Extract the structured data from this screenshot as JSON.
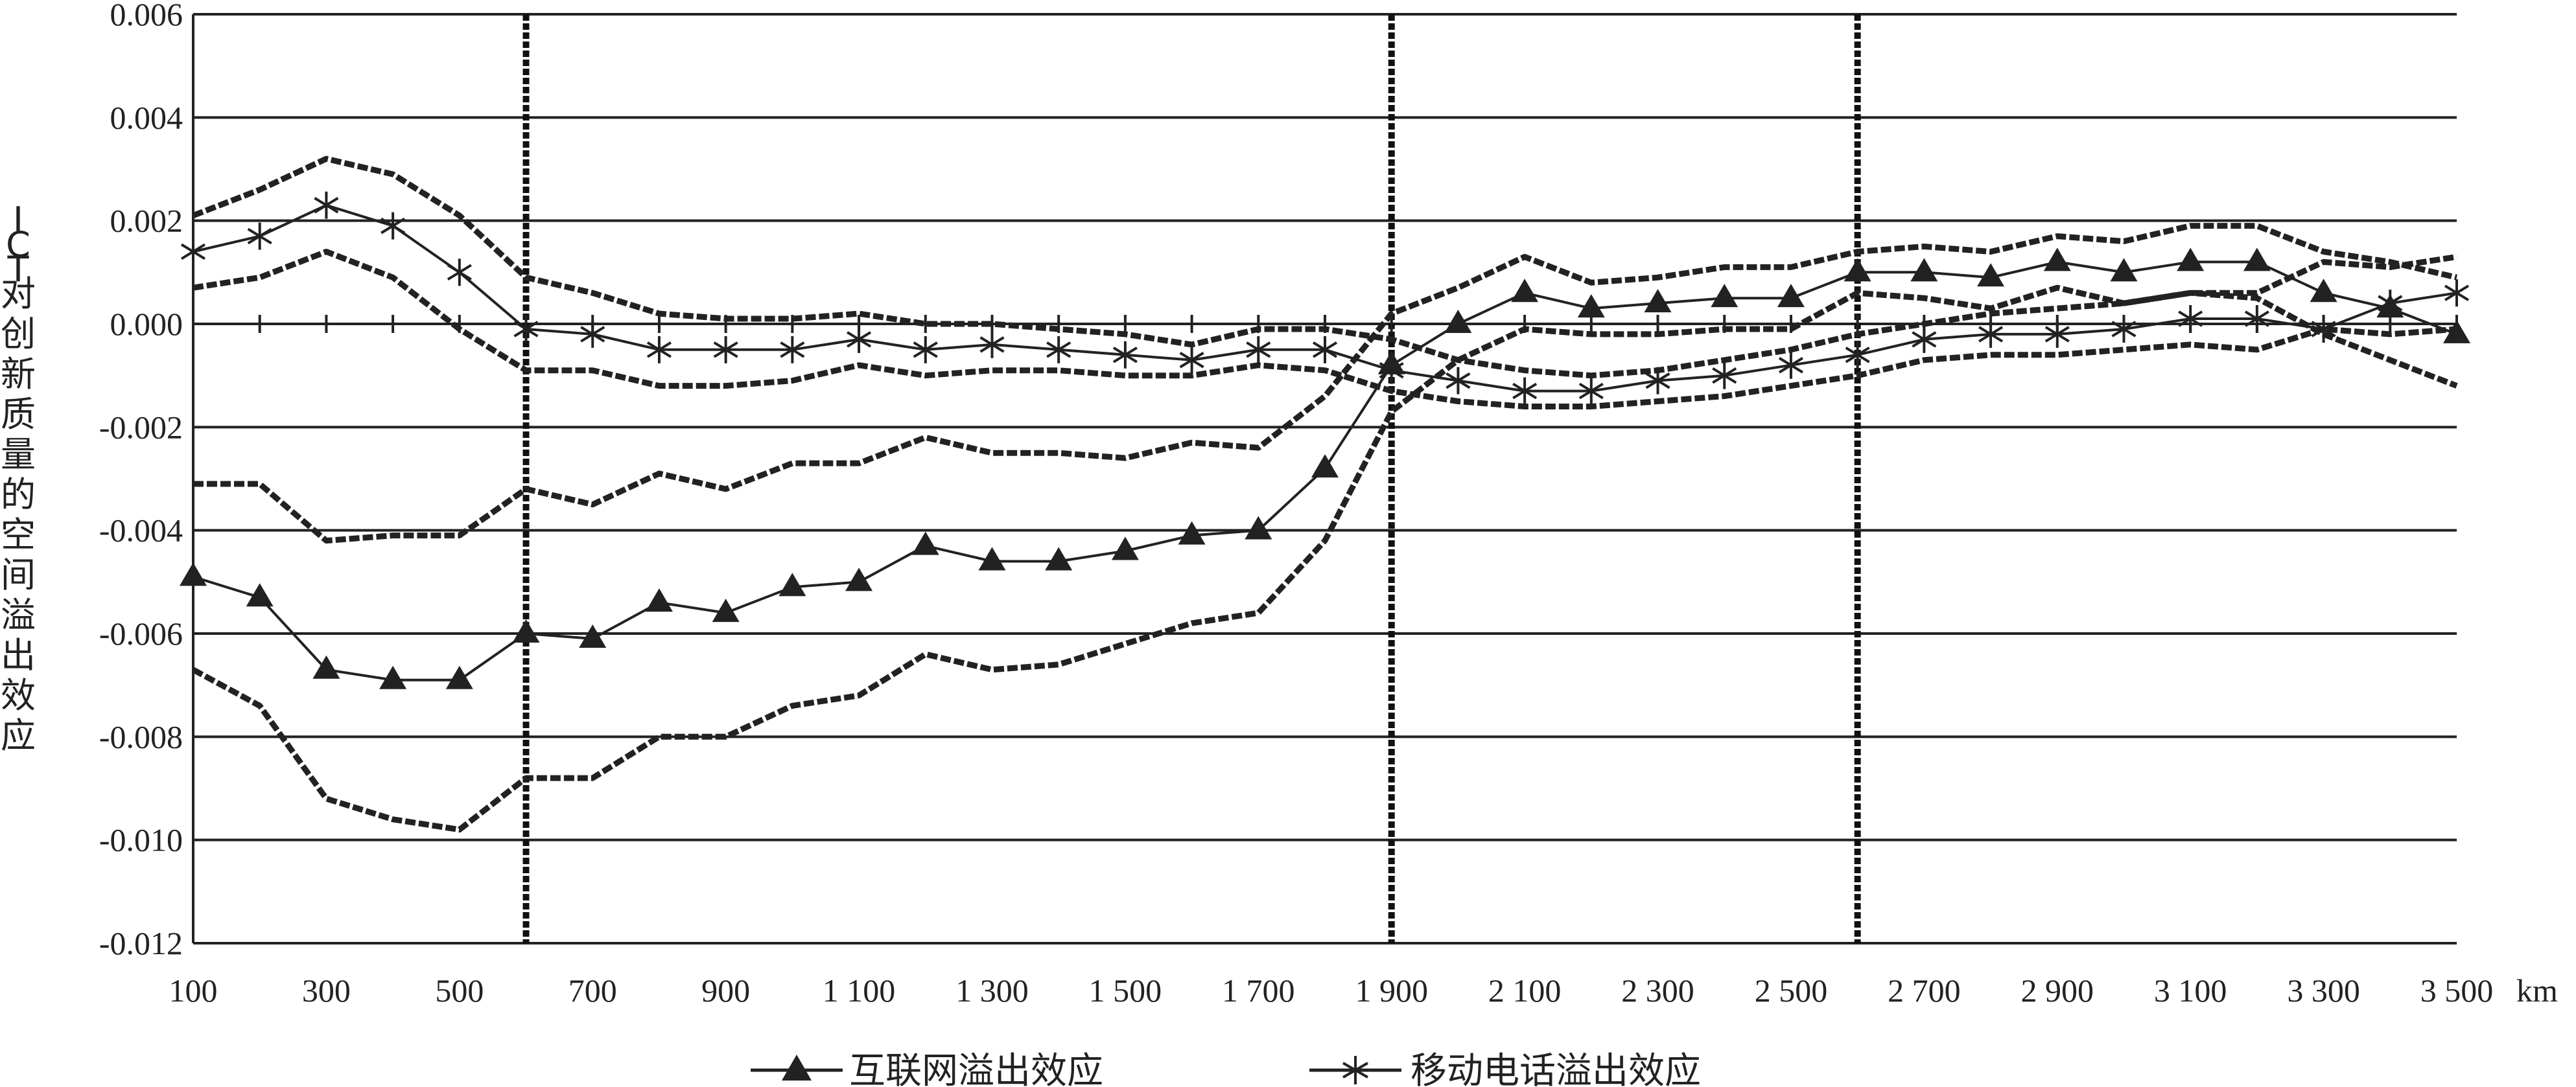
{
  "chart_data": {
    "type": "line",
    "ylabel": "ICT对创新质量的空间溢出效应",
    "x_unit": "km",
    "x": [
      100,
      200,
      300,
      400,
      500,
      600,
      700,
      800,
      900,
      1000,
      1100,
      1200,
      1300,
      1400,
      1500,
      1600,
      1700,
      1800,
      1900,
      2000,
      2100,
      2200,
      2300,
      2400,
      2500,
      2600,
      2700,
      2800,
      2900,
      3000,
      3100,
      3200,
      3300,
      3400,
      3500
    ],
    "xlim": [
      100,
      3500
    ],
    "ylim": [
      -0.012,
      0.006
    ],
    "x_ticks": [
      100,
      300,
      500,
      700,
      900,
      1100,
      1300,
      1500,
      1700,
      1900,
      2100,
      2300,
      2500,
      2700,
      2900,
      3100,
      3300,
      3500
    ],
    "x_tick_labels": [
      "100",
      "300",
      "500",
      "700",
      "900",
      "1 100",
      "1 300",
      "1 500",
      "1 700",
      "1 900",
      "2 100",
      "2 300",
      "2 500",
      "2 700",
      "2 900",
      "3 100",
      "3 300",
      "3 500"
    ],
    "y_ticks": [
      0.006,
      0.004,
      0.002,
      0.0,
      -0.002,
      -0.004,
      -0.006,
      -0.008,
      -0.01,
      -0.012
    ],
    "y_tick_labels": [
      "0.006",
      "0.004",
      "0.002",
      "0.000",
      "-0.002",
      "-0.004",
      "-0.006",
      "-0.008",
      "-0.010",
      "-0.012"
    ],
    "grid": "horizontal",
    "vertical_markers": [
      600,
      1900,
      2600
    ],
    "legend_position": "bottom",
    "series": [
      {
        "name": "互联网溢出效应",
        "marker": "triangle",
        "values": [
          -0.0049,
          -0.0053,
          -0.0067,
          -0.0069,
          -0.0069,
          -0.006,
          -0.0061,
          -0.0054,
          -0.0056,
          -0.0051,
          -0.005,
          -0.0043,
          -0.0046,
          -0.0046,
          -0.0044,
          -0.0041,
          -0.004,
          -0.0028,
          -0.0008,
          0.0,
          0.0006,
          0.0003,
          0.0004,
          0.0005,
          0.0005,
          0.001,
          0.001,
          0.0009,
          0.0012,
          0.001,
          0.0012,
          0.0012,
          0.0006,
          0.0003,
          -0.0002
        ],
        "upper": [
          -0.0031,
          -0.0031,
          -0.0042,
          -0.0041,
          -0.0041,
          -0.0032,
          -0.0035,
          -0.0029,
          -0.0032,
          -0.0027,
          -0.0027,
          -0.0022,
          -0.0025,
          -0.0025,
          -0.0026,
          -0.0023,
          -0.0024,
          -0.0014,
          0.0002,
          0.0007,
          0.0013,
          0.0008,
          0.0009,
          0.0011,
          0.0011,
          0.0014,
          0.0015,
          0.0014,
          0.0017,
          0.0016,
          0.0019,
          0.0019,
          0.0014,
          0.0012,
          0.0009
        ],
        "lower": [
          -0.0067,
          -0.0074,
          -0.0092,
          -0.0096,
          -0.0098,
          -0.0088,
          -0.0088,
          -0.008,
          -0.008,
          -0.0074,
          -0.0072,
          -0.0064,
          -0.0067,
          -0.0066,
          -0.0062,
          -0.0058,
          -0.0056,
          -0.0042,
          -0.0017,
          -0.0007,
          -0.0001,
          -0.0002,
          -0.0002,
          -0.0001,
          -0.0001,
          0.0006,
          0.0005,
          0.0003,
          0.0007,
          0.0004,
          0.0006,
          0.0005,
          -0.0002,
          -0.0007,
          -0.0012
        ]
      },
      {
        "name": "移动电话溢出效应",
        "marker": "asterisk",
        "values": [
          0.0014,
          0.0017,
          0.0023,
          0.0019,
          0.001,
          -0.0001,
          -0.0002,
          -0.0005,
          -0.0005,
          -0.0005,
          -0.0003,
          -0.0005,
          -0.0004,
          -0.0005,
          -0.0006,
          -0.0007,
          -0.0005,
          -0.0005,
          -0.0009,
          -0.0011,
          -0.0013,
          -0.0013,
          -0.0011,
          -0.001,
          -0.0008,
          -0.0006,
          -0.0003,
          -0.0002,
          -0.0002,
          -0.0001,
          0.0001,
          0.0001,
          -0.0001,
          0.0004,
          0.0006
        ],
        "upper": [
          0.0021,
          0.0026,
          0.0032,
          0.0029,
          0.0021,
          0.0009,
          0.0006,
          0.0002,
          0.0001,
          0.0001,
          0.0002,
          0.0,
          0.0,
          -0.0001,
          -0.0002,
          -0.0004,
          -0.0001,
          -0.0001,
          -0.0003,
          -0.0007,
          -0.0009,
          -0.001,
          -0.0009,
          -0.0007,
          -0.0005,
          -0.0002,
          0.0,
          0.0002,
          0.0003,
          0.0004,
          0.0006,
          0.0006,
          0.0012,
          0.0011,
          0.0013
        ],
        "lower": [
          0.0007,
          0.0009,
          0.0014,
          0.0009,
          -0.0001,
          -0.0009,
          -0.0009,
          -0.0012,
          -0.0012,
          -0.0011,
          -0.0008,
          -0.001,
          -0.0009,
          -0.0009,
          -0.001,
          -0.001,
          -0.0008,
          -0.0009,
          -0.0013,
          -0.0015,
          -0.0016,
          -0.0016,
          -0.0015,
          -0.0014,
          -0.0012,
          -0.001,
          -0.0007,
          -0.0006,
          -0.0006,
          -0.0005,
          -0.0004,
          -0.0005,
          -0.0001,
          -0.0002,
          -0.0001
        ]
      }
    ]
  }
}
